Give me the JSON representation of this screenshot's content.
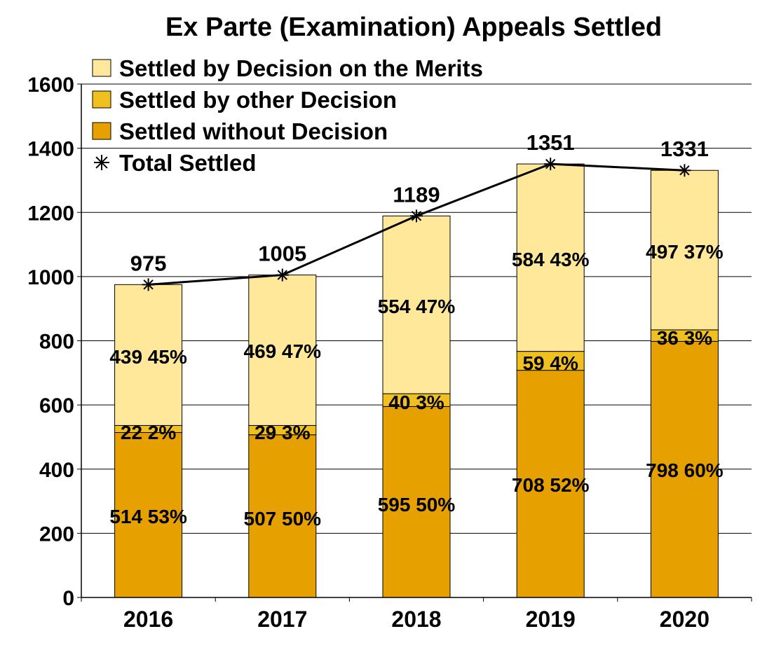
{
  "chart_data": {
    "type": "bar",
    "stacked": true,
    "title": "Ex Parte (Examination) Appeals Settled",
    "categories": [
      "2016",
      "2017",
      "2018",
      "2019",
      "2020"
    ],
    "ylim": [
      0,
      1600
    ],
    "yticks": [
      "0",
      "200",
      "400",
      "600",
      "800",
      "1000",
      "1200",
      "1400",
      "1600"
    ],
    "grid": true,
    "legend_position": "top-left",
    "series": [
      {
        "name": "Settled without Decision",
        "color": "#E6A000",
        "values": [
          514,
          507,
          595,
          708,
          798
        ],
        "labels": [
          "514 53%",
          "507 50%",
          "595 50%",
          "708 52%",
          "798 60%"
        ]
      },
      {
        "name": "Settled by other Decision",
        "color": "#F0C020",
        "values": [
          22,
          29,
          40,
          59,
          36
        ],
        "labels": [
          "22 2%",
          "29 3%",
          "40 3%",
          "59 4%",
          "36 3%"
        ]
      },
      {
        "name": "Settled by Decision on the Merits",
        "color": "#FFE899",
        "values": [
          439,
          469,
          554,
          584,
          497
        ],
        "labels": [
          "439 45%",
          "469 47%",
          "554 47%",
          "584 43%",
          "497 37%"
        ]
      }
    ],
    "line_series": {
      "name": "Total Settled",
      "color": "#000000",
      "marker": "asterisk",
      "values": [
        975,
        1005,
        1189,
        1351,
        1331
      ],
      "labels": [
        "975",
        "1005",
        "1189",
        "1351",
        "1331"
      ]
    },
    "legend": [
      {
        "label": "Settled by Decision on the Merits",
        "color": "#FFE899",
        "kind": "box"
      },
      {
        "label": "Settled by other Decision",
        "color": "#F0C020",
        "kind": "box"
      },
      {
        "label": "Settled without Decision",
        "color": "#E6A000",
        "kind": "box"
      },
      {
        "label": "Total Settled",
        "color": "#000000",
        "kind": "asterisk"
      }
    ]
  }
}
